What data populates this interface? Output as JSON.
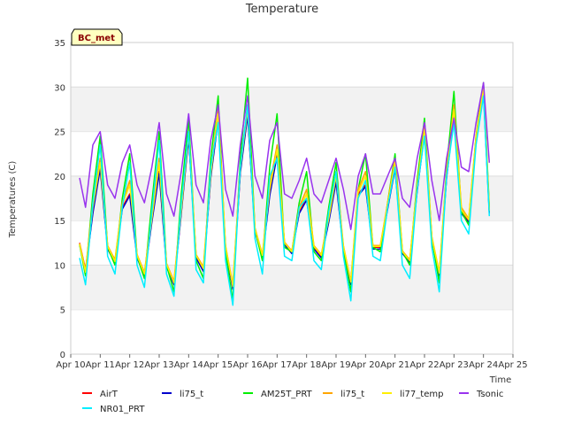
{
  "chart_data": {
    "type": "line",
    "title": "Temperature",
    "xlabel": "Time",
    "ylabel": "Temperatures (C)",
    "badge": "BC_met",
    "x_ticks": [
      "Apr 10",
      "Apr 11",
      "Apr 12",
      "Apr 13",
      "Apr 14",
      "Apr 15",
      "Apr 16",
      "Apr 17",
      "Apr 18",
      "Apr 19",
      "Apr 20",
      "Apr 21",
      "Apr 22",
      "Apr 23",
      "Apr 24",
      "Apr 25"
    ],
    "y_ticks": [
      "0",
      "5",
      "10",
      "15",
      "20",
      "25",
      "30",
      "35"
    ],
    "xlim": [
      0,
      15
    ],
    "ylim": [
      0,
      35
    ],
    "grid": "horizontal-bands",
    "legend_position": "bottom",
    "x_day": [
      0.3,
      0.5,
      0.75,
      1.0,
      1.25,
      1.5,
      1.75,
      2.0,
      2.25,
      2.5,
      2.75,
      3.0,
      3.25,
      3.5,
      3.75,
      4.0,
      4.25,
      4.5,
      4.75,
      5.0,
      5.25,
      5.5,
      5.75,
      6.0,
      6.25,
      6.5,
      6.75,
      7.0,
      7.25,
      7.5,
      7.75,
      8.0,
      8.25,
      8.5,
      8.75,
      9.0,
      9.25,
      9.5,
      9.75,
      10.0,
      10.25,
      10.5,
      10.75,
      11.0,
      11.25,
      11.5,
      11.75,
      12.0,
      12.25,
      12.5,
      12.75,
      13.0,
      13.25,
      13.5,
      13.75,
      14.0,
      14.2
    ],
    "series": [
      {
        "name": "AirT",
        "color": "#ff0000",
        "values": [
          12.5,
          9.5,
          16.0,
          21.0,
          12.0,
          10.5,
          16.5,
          18.0,
          11.0,
          9.0,
          15.0,
          20.5,
          10.0,
          8.0,
          16.0,
          24.5,
          11.0,
          9.5,
          20.0,
          26.5,
          12.0,
          7.5,
          20.5,
          27.0,
          14.0,
          11.0,
          18.0,
          22.5,
          12.5,
          11.5,
          16.0,
          17.5,
          12.0,
          11.0,
          15.0,
          19.5,
          12.0,
          8.0,
          18.0,
          19.0,
          12.0,
          12.0,
          16.5,
          21.0,
          11.5,
          10.5,
          18.5,
          25.0,
          13.0,
          9.0,
          20.0,
          27.0,
          16.0,
          15.0,
          24.0,
          29.5,
          16.0
        ]
      },
      {
        "name": "li75_t",
        "color": "#0000cc",
        "values": [
          12.3,
          9.3,
          15.8,
          20.8,
          11.8,
          10.3,
          16.3,
          17.8,
          10.8,
          8.8,
          14.8,
          20.3,
          9.8,
          7.8,
          15.8,
          24.3,
          10.8,
          9.3,
          19.8,
          26.3,
          11.8,
          7.3,
          20.3,
          26.8,
          13.8,
          10.8,
          17.8,
          22.3,
          12.3,
          11.3,
          15.8,
          17.3,
          11.8,
          10.8,
          14.8,
          19.3,
          11.8,
          7.8,
          17.8,
          18.8,
          11.8,
          11.8,
          16.3,
          20.8,
          11.3,
          10.3,
          18.3,
          24.8,
          12.8,
          8.8,
          19.8,
          26.8,
          15.8,
          14.8,
          23.8,
          29.3,
          15.8
        ]
      },
      {
        "name": "AM25T_PRT",
        "color": "#00ee00",
        "values": [
          12.3,
          8.8,
          18.0,
          24.5,
          12.0,
          10.0,
          17.5,
          22.5,
          11.0,
          8.5,
          17.0,
          25.0,
          10.0,
          7.0,
          18.0,
          26.5,
          10.5,
          8.5,
          22.0,
          29.0,
          11.5,
          6.0,
          22.0,
          31.0,
          14.0,
          10.5,
          21.0,
          27.0,
          12.0,
          11.5,
          17.0,
          20.5,
          11.5,
          10.5,
          16.5,
          21.5,
          11.5,
          7.0,
          18.5,
          22.5,
          12.0,
          11.5,
          17.0,
          22.5,
          11.5,
          10.0,
          19.5,
          26.5,
          13.0,
          8.0,
          21.0,
          29.5,
          16.0,
          14.5,
          24.5,
          30.5,
          16.5
        ]
      },
      {
        "name": "li75_t",
        "color": "#ffa500",
        "values": [
          12.4,
          9.4,
          17.0,
          22.0,
          12.2,
          10.6,
          17.0,
          19.5,
          11.2,
          9.2,
          15.5,
          22.0,
          10.2,
          8.2,
          16.5,
          25.0,
          11.2,
          9.8,
          20.5,
          27.5,
          12.2,
          7.8,
          21.0,
          28.0,
          14.2,
          11.2,
          19.0,
          23.5,
          12.6,
          11.6,
          16.5,
          18.5,
          12.2,
          11.2,
          15.5,
          20.5,
          12.2,
          8.2,
          18.5,
          20.5,
          12.2,
          12.2,
          17.0,
          22.0,
          11.6,
          10.6,
          19.0,
          25.5,
          13.2,
          9.2,
          20.5,
          28.0,
          16.5,
          15.2,
          24.5,
          30.0,
          16.2
        ]
      },
      {
        "name": "li77_temp",
        "color": "#ffee00",
        "values": [
          12.4,
          9.2,
          16.5,
          21.5,
          12.1,
          10.4,
          16.8,
          19.0,
          11.1,
          9.0,
          15.2,
          21.5,
          10.1,
          8.0,
          16.2,
          24.8,
          11.1,
          9.6,
          20.2,
          27.0,
          12.1,
          7.6,
          20.8,
          27.5,
          14.1,
          11.1,
          18.5,
          23.0,
          12.5,
          11.5,
          16.2,
          18.0,
          12.1,
          11.1,
          15.2,
          20.0,
          12.1,
          8.1,
          18.2,
          20.0,
          12.1,
          12.1,
          16.8,
          21.5,
          11.5,
          10.5,
          18.8,
          25.2,
          13.1,
          9.1,
          20.2,
          27.5,
          16.2,
          15.1,
          24.2,
          29.8,
          16.1
        ]
      },
      {
        "name": "NR01_PRT",
        "color": "#00eeff",
        "values": [
          10.8,
          7.8,
          17.0,
          23.5,
          11.0,
          9.0,
          16.5,
          21.5,
          10.0,
          7.5,
          16.0,
          24.0,
          9.0,
          6.5,
          17.0,
          25.0,
          9.5,
          8.0,
          21.0,
          26.0,
          10.5,
          5.5,
          21.0,
          28.0,
          13.0,
          9.0,
          20.0,
          22.0,
          11.0,
          10.5,
          16.5,
          17.5,
          10.5,
          9.5,
          16.0,
          20.5,
          11.0,
          6.0,
          17.5,
          19.5,
          11.0,
          10.5,
          16.5,
          21.0,
          10.0,
          8.5,
          18.5,
          24.5,
          12.0,
          7.0,
          20.0,
          26.0,
          15.0,
          13.5,
          23.5,
          29.0,
          15.5
        ]
      },
      {
        "name": "Tsonic",
        "color": "#9933ee",
        "values": [
          19.8,
          16.5,
          23.5,
          25.0,
          19.0,
          17.5,
          21.5,
          23.5,
          19.0,
          17.0,
          21.0,
          26.0,
          18.0,
          15.5,
          20.5,
          27.0,
          19.0,
          17.0,
          24.0,
          28.0,
          18.5,
          15.5,
          23.5,
          29.0,
          20.0,
          17.5,
          24.0,
          26.0,
          18.0,
          17.5,
          19.5,
          22.0,
          18.0,
          17.0,
          19.5,
          22.0,
          18.5,
          14.0,
          20.0,
          22.5,
          18.0,
          18.0,
          20.0,
          22.0,
          17.5,
          16.5,
          22.0,
          26.0,
          19.5,
          15.0,
          22.0,
          26.5,
          21.0,
          20.5,
          26.0,
          30.5,
          21.5
        ]
      }
    ]
  }
}
